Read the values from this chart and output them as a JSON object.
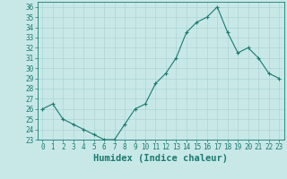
{
  "x": [
    0,
    1,
    2,
    3,
    4,
    5,
    6,
    7,
    8,
    9,
    10,
    11,
    12,
    13,
    14,
    15,
    16,
    17,
    18,
    19,
    20,
    21,
    22,
    23
  ],
  "y": [
    26,
    26.5,
    25,
    24.5,
    24,
    23.5,
    23,
    23,
    24.5,
    26,
    26.5,
    28.5,
    29.5,
    31,
    33.5,
    34.5,
    35,
    36,
    33.5,
    31.5,
    32,
    31,
    29.5,
    29
  ],
  "line_color": "#1a7a6e",
  "marker": "+",
  "marker_size": 3,
  "bg_color": "#c8e8e8",
  "grid_color": "#aed4d4",
  "xlabel": "Humidex (Indice chaleur)",
  "ylim": [
    23,
    36.5
  ],
  "xlim": [
    -0.5,
    23.5
  ],
  "yticks": [
    23,
    24,
    25,
    26,
    27,
    28,
    29,
    30,
    31,
    32,
    33,
    34,
    35,
    36
  ],
  "xticks": [
    0,
    1,
    2,
    3,
    4,
    5,
    6,
    7,
    8,
    9,
    10,
    11,
    12,
    13,
    14,
    15,
    16,
    17,
    18,
    19,
    20,
    21,
    22,
    23
  ],
  "tick_label_fontsize": 5.5,
  "xlabel_fontsize": 7.5,
  "line_width": 0.8,
  "marker_edge_width": 0.8
}
